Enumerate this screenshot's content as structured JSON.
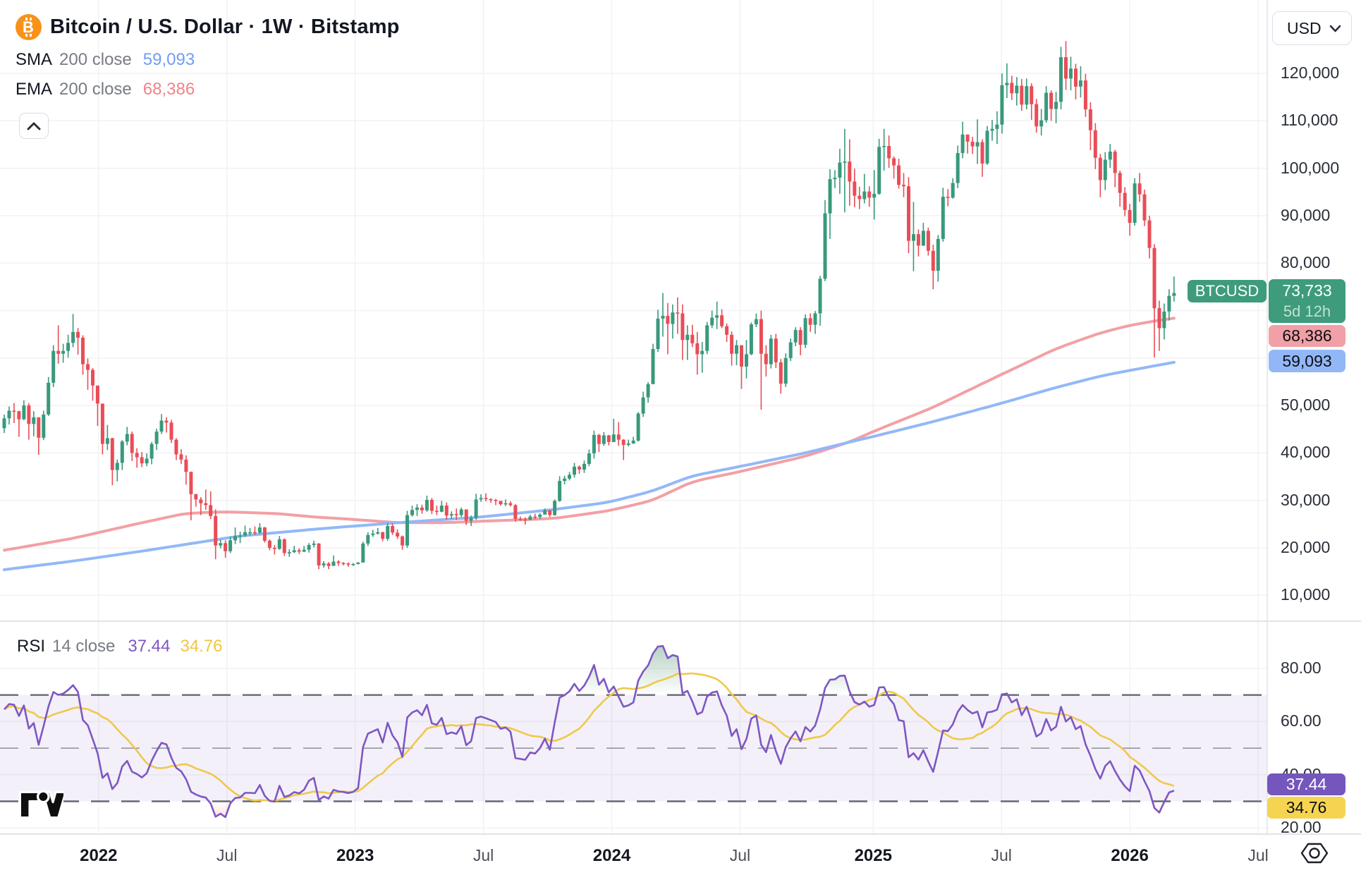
{
  "header": {
    "title": "Bitcoin / U.S. Dollar · 1W · Bitstamp",
    "sma_label": "SMA",
    "sma_params": "200 close",
    "sma_value": "59,093",
    "ema_label": "EMA",
    "ema_params": "200 close",
    "ema_value": "68,386",
    "currency": "USD"
  },
  "rsi_legend": {
    "label": "RSI",
    "params": "14 close",
    "value": "37.44",
    "ma_value": "34.76"
  },
  "tags": {
    "symbol": "BTCUSD",
    "last_price": "73,733",
    "countdown": "5d 12h",
    "ema": "68,386",
    "sma": "59,093",
    "rsi": "37.44",
    "rsi_ma": "34.76"
  },
  "price_axis_labels": [
    {
      "text": "120,000",
      "value": 120
    },
    {
      "text": "110,000",
      "value": 110
    },
    {
      "text": "100,000",
      "value": 100
    },
    {
      "text": "90,000",
      "value": 90
    },
    {
      "text": "80,000",
      "value": 80
    },
    {
      "text": "70,000",
      "value": 70
    },
    {
      "text": "60,000",
      "value": 60
    },
    {
      "text": "50,000",
      "value": 50
    },
    {
      "text": "40,000",
      "value": 40
    },
    {
      "text": "30,000",
      "value": 30
    },
    {
      "text": "20,000",
      "value": 20
    },
    {
      "text": "10,000",
      "value": 10
    }
  ],
  "rsi_axis_labels": [
    {
      "text": "80.00",
      "value": 80
    },
    {
      "text": "60.00",
      "value": 60
    },
    {
      "text": "40.00",
      "value": 40
    },
    {
      "text": "20.00",
      "value": 20
    }
  ],
  "time_axis": [
    {
      "label": "2022",
      "week": 19.2,
      "major": true
    },
    {
      "label": "Jul",
      "week": 45.3,
      "major": false
    },
    {
      "label": "2023",
      "week": 71.4,
      "major": true
    },
    {
      "label": "Jul",
      "week": 97.5,
      "major": false
    },
    {
      "label": "2024",
      "week": 123.6,
      "major": true
    },
    {
      "label": "Jul",
      "week": 149.7,
      "major": false
    },
    {
      "label": "2025",
      "week": 176.8,
      "major": true
    },
    {
      "label": "Jul",
      "week": 202.9,
      "major": false
    },
    {
      "label": "2026",
      "week": 229.0,
      "major": true
    },
    {
      "label": "Jul",
      "week": 255.1,
      "major": false
    }
  ],
  "colors": {
    "up": "#39997C",
    "down": "#E94D57",
    "sma": "#92b8f7",
    "ema": "#f2a0a5",
    "rsi": "#7e57c2",
    "rsi_ma": "#f0c84b",
    "grid": "#f1f2f4",
    "band": "rgba(126,87,194,0.09)",
    "dashed": "#565a64",
    "separator": "#e1e3ea",
    "accent_green": "#3e9b7c",
    "tag_pink": "#f0a0a6",
    "tag_blue": "#91b7f6",
    "tag_purple": "#7456bd",
    "tag_yellow": "#f6d451",
    "btc_orange": "#f7931a"
  },
  "chart_data": {
    "type": "candlestick",
    "title": "Bitcoin / U.S. Dollar",
    "interval": "1W",
    "exchange": "Bitstamp",
    "unit_note": "prices in thousands of USD, weekly candles from Aug 2021 to Mar 2026",
    "price_axis_range_k": [
      10,
      120
    ],
    "price_gridlines_k": [
      10,
      20,
      30,
      40,
      50,
      60,
      70,
      80,
      90,
      100,
      110,
      120
    ],
    "rsi_gridlines": [
      20,
      40,
      60,
      80
    ],
    "first_open": 45.2,
    "candles": [
      [
        47.3,
        48.1,
        44.2
      ],
      [
        48.9,
        49.8,
        46.0
      ],
      [
        48.8,
        50.5,
        46.3
      ],
      [
        47.1,
        48.9,
        43.4
      ],
      [
        50.0,
        51.1,
        46.9
      ],
      [
        46.1,
        50.5,
        42.8
      ],
      [
        47.5,
        48.8,
        43.5
      ],
      [
        43.2,
        47.4,
        39.6
      ],
      [
        48.1,
        48.9,
        42.7
      ],
      [
        54.8,
        56.0,
        47.8
      ],
      [
        61.5,
        62.7,
        53.9
      ],
      [
        60.9,
        66.9,
        58.8
      ],
      [
        61.5,
        63.0,
        59.0
      ],
      [
        63.2,
        64.9,
        60.1
      ],
      [
        65.5,
        69.3,
        62.3
      ],
      [
        64.3,
        66.3,
        60.7
      ],
      [
        58.7,
        64.8,
        56.5
      ],
      [
        57.5,
        59.9,
        53.3
      ],
      [
        54.2,
        57.9,
        51.0
      ],
      [
        50.4,
        53.0,
        45.7
      ],
      [
        41.9,
        50.0,
        39.7
      ],
      [
        43.1,
        45.9,
        40.6
      ],
      [
        36.4,
        43.2,
        33.2
      ],
      [
        37.9,
        38.6,
        34.0
      ],
      [
        42.4,
        42.7,
        36.4
      ],
      [
        44.0,
        45.5,
        41.6
      ],
      [
        40.0,
        44.5,
        38.3
      ],
      [
        39.1,
        41.0,
        36.9
      ],
      [
        37.8,
        40.2,
        37.0
      ],
      [
        38.8,
        39.9,
        37.2
      ],
      [
        41.9,
        42.3,
        37.6
      ],
      [
        44.5,
        45.1,
        40.6
      ],
      [
        46.8,
        48.2,
        44.0
      ],
      [
        46.4,
        47.5,
        44.3
      ],
      [
        42.8,
        47.0,
        42.1
      ],
      [
        39.7,
        43.1,
        38.5
      ],
      [
        38.6,
        40.8,
        37.7
      ],
      [
        36.0,
        39.5,
        33.3
      ],
      [
        31.3,
        36.1,
        25.8
      ],
      [
        30.2,
        31.4,
        28.7
      ],
      [
        29.4,
        30.7,
        26.9
      ],
      [
        29.0,
        32.3,
        28.0
      ],
      [
        26.7,
        31.9,
        26.1
      ],
      [
        20.5,
        28.1,
        17.6
      ],
      [
        21.0,
        21.7,
        19.9
      ],
      [
        19.3,
        21.6,
        17.9
      ],
      [
        21.6,
        22.4,
        18.9
      ],
      [
        22.5,
        24.3,
        20.8
      ],
      [
        22.6,
        23.4,
        21.0
      ],
      [
        23.3,
        24.7,
        22.3
      ],
      [
        23.3,
        24.2,
        22.6
      ],
      [
        23.2,
        24.5,
        22.7
      ],
      [
        24.3,
        25.2,
        22.9
      ],
      [
        21.5,
        24.4,
        21.1
      ],
      [
        20.0,
        21.8,
        19.5
      ],
      [
        19.8,
        20.6,
        18.6
      ],
      [
        21.8,
        22.5,
        19.6
      ],
      [
        18.9,
        22.0,
        18.3
      ],
      [
        19.1,
        19.7,
        18.1
      ],
      [
        19.5,
        20.4,
        18.9
      ],
      [
        19.2,
        19.9,
        18.7
      ],
      [
        19.6,
        20.4,
        19.1
      ],
      [
        20.6,
        21.0,
        19.0
      ],
      [
        20.9,
        21.5,
        20.1
      ],
      [
        16.3,
        21.0,
        15.5
      ],
      [
        16.7,
        17.2,
        15.8
      ],
      [
        16.2,
        17.0,
        15.5
      ],
      [
        17.1,
        18.4,
        16.2
      ],
      [
        16.8,
        17.4,
        16.2
      ],
      [
        16.7,
        17.0,
        16.3
      ],
      [
        16.5,
        16.9,
        16.0
      ],
      [
        16.6,
        16.8,
        16.2
      ],
      [
        16.9,
        17.0,
        16.5
      ],
      [
        20.9,
        21.3,
        16.9
      ],
      [
        22.7,
        23.3,
        20.4
      ],
      [
        23.0,
        23.8,
        22.3
      ],
      [
        23.3,
        24.2,
        22.8
      ],
      [
        21.9,
        23.4,
        21.4
      ],
      [
        24.6,
        25.2,
        21.5
      ],
      [
        23.2,
        25.1,
        22.7
      ],
      [
        22.4,
        23.9,
        21.9
      ],
      [
        20.5,
        22.6,
        19.6
      ],
      [
        26.9,
        27.8,
        20.0
      ],
      [
        28.0,
        28.9,
        26.6
      ],
      [
        28.5,
        29.2,
        26.7
      ],
      [
        27.9,
        29.1,
        27.2
      ],
      [
        30.1,
        31.0,
        27.6
      ],
      [
        27.8,
        30.5,
        27.1
      ],
      [
        27.6,
        28.9,
        26.9
      ],
      [
        28.9,
        29.9,
        27.5
      ],
      [
        26.8,
        29.6,
        25.9
      ],
      [
        27.1,
        27.7,
        26.1
      ],
      [
        26.9,
        28.3,
        25.9
      ],
      [
        28.1,
        28.5,
        26.5
      ],
      [
        25.7,
        27.4,
        24.8
      ],
      [
        26.3,
        26.8,
        24.6
      ],
      [
        30.2,
        31.4,
        25.9
      ],
      [
        30.5,
        31.3,
        29.7
      ],
      [
        30.3,
        31.5,
        29.8
      ],
      [
        30.1,
        30.4,
        29.5
      ],
      [
        29.9,
        30.3,
        29.0
      ],
      [
        29.2,
        29.9,
        28.9
      ],
      [
        29.4,
        30.2,
        28.8
      ],
      [
        29.0,
        29.8,
        28.7
      ],
      [
        26.1,
        29.2,
        25.5
      ],
      [
        26.0,
        26.6,
        25.7
      ],
      [
        25.9,
        26.4,
        24.9
      ],
      [
        26.6,
        27.0,
        25.8
      ],
      [
        26.5,
        27.2,
        26.0
      ],
      [
        27.0,
        27.3,
        26.1
      ],
      [
        27.9,
        28.3,
        27.2
      ],
      [
        26.9,
        28.0,
        26.5
      ],
      [
        29.9,
        30.2,
        26.8
      ],
      [
        34.1,
        35.1,
        29.7
      ],
      [
        34.6,
        35.2,
        33.4
      ],
      [
        35.4,
        36.0,
        34.2
      ],
      [
        37.1,
        37.9,
        34.8
      ],
      [
        36.5,
        37.4,
        35.6
      ],
      [
        37.7,
        38.4,
        35.8
      ],
      [
        39.9,
        40.7,
        37.2
      ],
      [
        43.8,
        44.7,
        38.8
      ],
      [
        41.9,
        44.0,
        40.2
      ],
      [
        43.7,
        44.4,
        41.5
      ],
      [
        42.3,
        43.8,
        41.6
      ],
      [
        43.9,
        47.2,
        42.6
      ],
      [
        42.8,
        46.5,
        41.5
      ],
      [
        41.7,
        42.9,
        38.5
      ],
      [
        42.0,
        42.8,
        41.4
      ],
      [
        42.6,
        43.4,
        41.9
      ],
      [
        48.3,
        48.6,
        42.4
      ],
      [
        51.7,
        52.9,
        47.6
      ],
      [
        54.5,
        54.9,
        50.6
      ],
      [
        61.9,
        63.0,
        54.5
      ],
      [
        68.3,
        70.2,
        61.3
      ],
      [
        68.9,
        73.7,
        64.5
      ],
      [
        67.2,
        71.6,
        60.8
      ],
      [
        69.6,
        71.3,
        64.1
      ],
      [
        69.4,
        72.8,
        65.1
      ],
      [
        63.8,
        71.3,
        59.6
      ],
      [
        64.9,
        66.9,
        59.6
      ],
      [
        63.1,
        67.0,
        62.3
      ],
      [
        60.8,
        65.5,
        56.5
      ],
      [
        61.5,
        63.4,
        56.9
      ],
      [
        66.9,
        67.6,
        60.8
      ],
      [
        68.5,
        70.0,
        66.3
      ],
      [
        69.0,
        71.9,
        66.1
      ],
      [
        66.7,
        70.3,
        66.3
      ],
      [
        64.9,
        67.3,
        63.4
      ],
      [
        60.9,
        65.6,
        58.4
      ],
      [
        62.7,
        63.8,
        58.5
      ],
      [
        58.2,
        61.0,
        53.5
      ],
      [
        60.8,
        63.8,
        55.7
      ],
      [
        67.1,
        67.5,
        60.6
      ],
      [
        68.2,
        69.4,
        66.5
      ],
      [
        60.9,
        70.0,
        49.1
      ],
      [
        58.7,
        62.7,
        56.1
      ],
      [
        64.1,
        64.9,
        57.8
      ],
      [
        59.1,
        65.1,
        57.9
      ],
      [
        54.6,
        59.8,
        52.5
      ],
      [
        60.0,
        61.0,
        53.9
      ],
      [
        63.3,
        64.1,
        59.4
      ],
      [
        65.9,
        66.5,
        62.5
      ],
      [
        62.8,
        66.5,
        60.6
      ],
      [
        68.4,
        69.2,
        62.1
      ],
      [
        67.0,
        69.4,
        65.5
      ],
      [
        69.4,
        69.9,
        65.1
      ],
      [
        76.7,
        77.3,
        66.8
      ],
      [
        90.5,
        93.3,
        76.2
      ],
      [
        97.7,
        99.8,
        85.1
      ],
      [
        98.0,
        99.6,
        95.8
      ],
      [
        101.2,
        104.1,
        94.6
      ],
      [
        101.4,
        108.3,
        90.7
      ],
      [
        97.2,
        106.1,
        92.1
      ],
      [
        94.2,
        99.9,
        91.8
      ],
      [
        93.5,
        96.1,
        91.4
      ],
      [
        95.1,
        98.8,
        92.6
      ],
      [
        93.8,
        96.2,
        91.9
      ],
      [
        94.6,
        99.6,
        89.2
      ],
      [
        104.5,
        106.2,
        94.4
      ],
      [
        104.7,
        108.3,
        99.5
      ],
      [
        102.1,
        106.9,
        100.1
      ],
      [
        100.6,
        102.5,
        97.8
      ],
      [
        96.5,
        102.0,
        95.7
      ],
      [
        96.2,
        99.0,
        93.9
      ],
      [
        84.7,
        98.1,
        82.1
      ],
      [
        86.1,
        92.9,
        78.3
      ],
      [
        83.7,
        87.1,
        81.4
      ],
      [
        86.8,
        88.5,
        83.6
      ],
      [
        82.6,
        87.5,
        81.6
      ],
      [
        78.4,
        83.9,
        74.5
      ],
      [
        85.1,
        85.9,
        76.1
      ],
      [
        94.0,
        95.9,
        84.5
      ],
      [
        93.8,
        95.6,
        92.0
      ],
      [
        96.9,
        97.9,
        93.6
      ],
      [
        103.2,
        104.8,
        95.8
      ],
      [
        107.1,
        109.8,
        102.1
      ],
      [
        105.6,
        107.1,
        103.1
      ],
      [
        104.6,
        106.6,
        103.0
      ],
      [
        105.5,
        110.3,
        100.9
      ],
      [
        101.0,
        106.1,
        98.2
      ],
      [
        107.9,
        108.9,
        100.7
      ],
      [
        108.3,
        110.2,
        105.8
      ],
      [
        109.2,
        112.0,
        105.1
      ],
      [
        117.5,
        120.0,
        107.3
      ],
      [
        118.0,
        122.1,
        114.8
      ],
      [
        115.8,
        119.5,
        114.4
      ],
      [
        117.4,
        119.2,
        113.2
      ],
      [
        113.4,
        118.8,
        112.1
      ],
      [
        117.3,
        118.9,
        112.4
      ],
      [
        113.5,
        117.9,
        110.2
      ],
      [
        108.8,
        114.6,
        107.5
      ],
      [
        110.1,
        112.5,
        106.9
      ],
      [
        115.9,
        117.3,
        109.6
      ],
      [
        112.5,
        116.4,
        110.0
      ],
      [
        114.0,
        116.1,
        109.5
      ],
      [
        123.4,
        125.6,
        112.4
      ],
      [
        118.9,
        126.8,
        116.5
      ],
      [
        121.0,
        123.5,
        116.4
      ],
      [
        117.2,
        122.0,
        114.5
      ],
      [
        118.5,
        121.5,
        114.9
      ],
      [
        112.4,
        119.9,
        110.8
      ],
      [
        108.0,
        113.9,
        103.8
      ],
      [
        102.2,
        109.5,
        99.8
      ],
      [
        97.5,
        103.0,
        93.9
      ],
      [
        101.8,
        103.4,
        95.4
      ],
      [
        103.5,
        105.1,
        100.1
      ],
      [
        99.0,
        103.9,
        96.0
      ],
      [
        94.8,
        99.5,
        91.9
      ],
      [
        91.2,
        96.0,
        89.9
      ],
      [
        88.5,
        92.5,
        85.8
      ],
      [
        96.8,
        97.9,
        87.9
      ],
      [
        94.5,
        99.0,
        92.9
      ],
      [
        89.0,
        95.5,
        87.8
      ],
      [
        83.2,
        90.0,
        81.0
      ],
      [
        70.5,
        84.0,
        60.1
      ],
      [
        66.3,
        72.1,
        61.5
      ],
      [
        69.8,
        71.5,
        63.9
      ],
      [
        73.1,
        74.5,
        67.9
      ],
      [
        73.7,
        77.2,
        71.9
      ]
    ],
    "sma200_anchors": [
      [
        0,
        15.4
      ],
      [
        14,
        17.2
      ],
      [
        28,
        19.3
      ],
      [
        48,
        22.5
      ],
      [
        64,
        24.0
      ],
      [
        80,
        25.3
      ],
      [
        97,
        26.5
      ],
      [
        112,
        28.1
      ],
      [
        123,
        29.6
      ],
      [
        132,
        32.0
      ],
      [
        140,
        35.2
      ],
      [
        149,
        37.0
      ],
      [
        163,
        40.0
      ],
      [
        172,
        42.3
      ],
      [
        177,
        43.5
      ],
      [
        189,
        46.6
      ],
      [
        203,
        50.5
      ],
      [
        214,
        53.8
      ],
      [
        223,
        56.2
      ],
      [
        229,
        57.4
      ],
      [
        238,
        59.1
      ]
    ],
    "ema200_anchors": [
      [
        0,
        19.5
      ],
      [
        14,
        22.0
      ],
      [
        28,
        25.3
      ],
      [
        37,
        27.3
      ],
      [
        45,
        27.6
      ],
      [
        56,
        27.2
      ],
      [
        63,
        26.5
      ],
      [
        71,
        26.0
      ],
      [
        80,
        25.3
      ],
      [
        90,
        25.3
      ],
      [
        97,
        25.6
      ],
      [
        112,
        26.2
      ],
      [
        123,
        27.8
      ],
      [
        132,
        30.0
      ],
      [
        140,
        34.0
      ],
      [
        149,
        35.9
      ],
      [
        163,
        39.3
      ],
      [
        172,
        42.3
      ],
      [
        177,
        44.6
      ],
      [
        189,
        49.6
      ],
      [
        203,
        56.6
      ],
      [
        210,
        60.0
      ],
      [
        214,
        62.0
      ],
      [
        223,
        65.3
      ],
      [
        229,
        66.9
      ],
      [
        234,
        67.8
      ],
      [
        238,
        68.4
      ]
    ],
    "rsi": {
      "period": 14,
      "ma_period": 14,
      "seed_avg_gain": 1.3,
      "seed_avg_loss": 0.8,
      "overbought": 70,
      "middle": 50,
      "oversold": 30,
      "last": 37.44,
      "ma_last": 34.76
    },
    "legend_position": "top-left",
    "grid": true
  }
}
